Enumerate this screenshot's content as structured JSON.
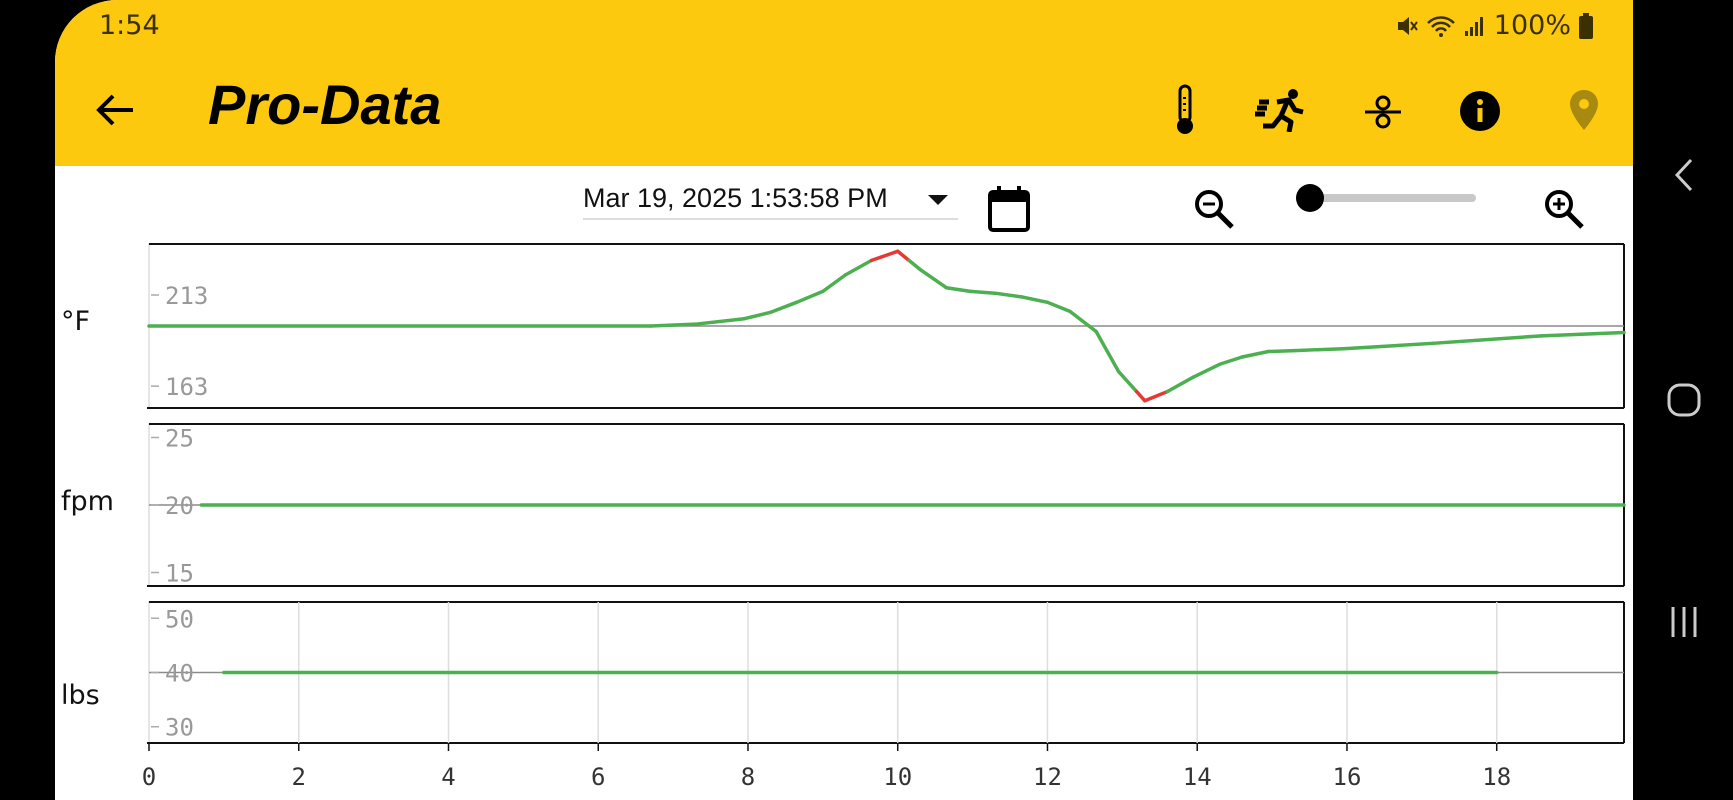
{
  "status_bar": {
    "time": "1:54",
    "battery": "100%",
    "icons": [
      "mute-icon",
      "wifi-icon",
      "signal-icon",
      "battery-icon"
    ]
  },
  "app_bar": {
    "title": "Pro-Data",
    "back_icon": "arrow-left-icon",
    "actions": [
      "thermometer-icon",
      "running-icon",
      "sensor-icon",
      "info-icon",
      "location-pin-icon"
    ]
  },
  "toolbar": {
    "date_value": "Mar 19, 2025 1:53:58 PM",
    "zoom_out_icon": "zoom-out-icon",
    "zoom_in_icon": "zoom-in-icon",
    "calendar_icon": "calendar-icon",
    "zoom_level": 0
  },
  "colors": {
    "accent": "#fdc90f",
    "series_ok": "#4caf50",
    "series_alarm": "#e53935",
    "grid": "#dddddd",
    "reference": "#8a8a8a"
  },
  "chart_data": [
    {
      "type": "line",
      "ylabel": "°F",
      "ylim": [
        151,
        241
      ],
      "yticks": [
        163,
        213
      ],
      "xlim": [
        0,
        19.7
      ],
      "reference_line": 196,
      "alarm_high": 232,
      "alarm_low": 160,
      "x": [
        0,
        6.7,
        7.3,
        7.95,
        8.3,
        8.65,
        9.0,
        9.3,
        9.65,
        10.0,
        10.3,
        10.65,
        10.97,
        11.3,
        11.65,
        12.0,
        12.3,
        12.65,
        12.95,
        13.3,
        13.6,
        13.95,
        14.3,
        14.6,
        14.95,
        15.3,
        15.6,
        15.95,
        17.15,
        18.6,
        19.7
      ],
      "y": [
        196,
        196,
        197,
        200,
        203.5,
        209,
        215,
        224,
        232,
        237,
        227,
        217,
        215,
        214,
        212,
        209,
        204,
        193,
        171,
        155,
        160,
        168,
        175,
        179,
        182,
        182.5,
        183,
        183.5,
        186.5,
        190.6,
        192.4
      ]
    },
    {
      "type": "line",
      "ylabel": "fpm",
      "ylim": [
        14,
        26
      ],
      "yticks": [
        15,
        20,
        25
      ],
      "xlim": [
        0,
        19.7
      ],
      "reference_line": 20,
      "x": [
        0.7,
        19.7
      ],
      "y": [
        20,
        20
      ]
    },
    {
      "type": "line",
      "ylabel": "lbs",
      "ylim": [
        27,
        53
      ],
      "yticks": [
        30,
        40,
        50
      ],
      "xlim": [
        0,
        19.7
      ],
      "reference_line": 40,
      "grid": true,
      "x": [
        1,
        18
      ],
      "y": [
        40,
        40
      ],
      "xticks": [
        0,
        2,
        4,
        6,
        8,
        10,
        12,
        14,
        16,
        18
      ]
    }
  ],
  "nav_bar": [
    "back-nav-icon",
    "home-nav-icon",
    "recents-nav-icon"
  ]
}
